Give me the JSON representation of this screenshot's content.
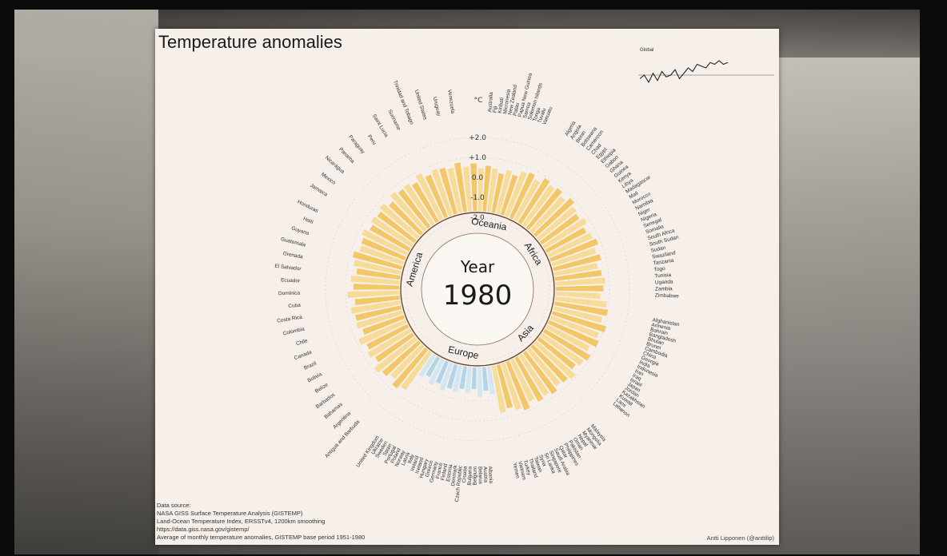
{
  "slide": {
    "title": "Temperature anomalies",
    "source_lines": [
      "Data source:",
      "NASA GISS Surface Temperature Analysis (GISTEMP)",
      "Land-Ocean Temperature Index, ERSSTv4, 1200km smoothing",
      "https://data.giss.nasa.gov/gistemp/",
      "Average of monthly temperature anomalies, GISTEMP base period 1951-1980"
    ],
    "credit": "Antti Lipponen (@anttilip)"
  },
  "colors": {
    "warm": "#f2c25a",
    "warm_light": "#f6d98e",
    "cool": "#a9d3ea",
    "cool_light": "#cfe6f2",
    "ring": "#6b4a2e",
    "slide_bg": "#f6efea"
  },
  "chart_data": {
    "type": "radial-bar",
    "center_label": "Year",
    "center_value": "1980",
    "unit_label": "°C",
    "radial_ticks": [
      "+2.0",
      "+1.0",
      "0.0",
      "-1.0",
      "-2.0"
    ],
    "radial_tick_values": [
      2,
      1,
      0,
      -1,
      -2
    ],
    "continents": [
      {
        "name": "Oceania",
        "start": 0,
        "end": 20
      },
      {
        "name": "Africa",
        "start": 20,
        "end": 95
      },
      {
        "name": "Asia",
        "start": 95,
        "end": 170
      },
      {
        "name": "Europe",
        "start": 170,
        "end": 215
      },
      {
        "name": "America",
        "start": 215,
        "end": 360
      }
    ],
    "series": [
      {
        "continent": "Oceania",
        "start": 0,
        "end": 20,
        "values": [
          0.45,
          0.6,
          0.5,
          0.3,
          0.55,
          0.4
        ]
      },
      {
        "continent": "Africa",
        "start": 20,
        "end": 95,
        "values": [
          0.7,
          0.8,
          0.6,
          0.9,
          0.75,
          0.85,
          0.65,
          0.9,
          0.7,
          0.6,
          0.8,
          0.55,
          0.7,
          0.85,
          0.6,
          0.75,
          0.5,
          0.65,
          0.8,
          0.7,
          0.55
        ]
      },
      {
        "continent": "Asia",
        "start": 95,
        "end": 170,
        "values": [
          0.9,
          1.0,
          0.8,
          1.1,
          0.85,
          1.0,
          0.7,
          0.95,
          0.8,
          0.6,
          0.9,
          0.75,
          0.65,
          0.85,
          0.7,
          0.8,
          0.6,
          0.9,
          0.75,
          0.55,
          0.7
        ]
      },
      {
        "continent": "Europe",
        "start": 170,
        "end": 215,
        "values": [
          -0.3,
          -0.5,
          -0.2,
          -0.6,
          -0.4,
          -0.55,
          -0.35,
          -0.45,
          -0.25,
          -0.5,
          -0.3,
          -0.6,
          -0.4
        ]
      },
      {
        "continent": "America",
        "start": 215,
        "end": 360,
        "values": [
          0.6,
          0.8,
          0.5,
          0.7,
          0.9,
          0.55,
          0.75,
          0.6,
          0.85,
          0.5,
          0.7,
          0.65,
          0.8,
          0.55,
          0.9,
          0.6,
          0.75,
          0.5,
          0.7,
          0.85,
          0.6,
          0.65,
          0.8,
          0.55,
          0.7,
          0.6,
          0.75,
          0.5,
          0.8,
          0.65,
          0.7,
          0.55,
          0.85,
          0.6,
          0.75,
          0.7,
          0.6,
          0.8,
          0.55,
          0.7
        ]
      }
    ],
    "countries": {
      "america_left": [
        "Antigua and Barbuda",
        "Argentina",
        "Bahamas",
        "Barbados",
        "Belize",
        "Bolivia",
        "Brazil",
        "Canada",
        "Chile",
        "Colombia",
        "Costa Rica",
        "Cuba",
        "Dominica",
        "Ecuador",
        "El Salvador",
        "Grenada",
        "Guatemala",
        "Guyana",
        "Haiti",
        "Honduras"
      ],
      "america_top": [
        "Jamaica",
        "Mexico",
        "Nicaragua",
        "Panama",
        "Paraguay",
        "Peru",
        "Saint Lucia",
        "Suriname",
        "Trinidad and Tobago",
        "United States",
        "Uruguay",
        "Venezuela"
      ],
      "oceania_top": [
        "Australia",
        "Fiji",
        "Kiribati",
        "Micronesia",
        "New Zealand",
        "Palau",
        "Papua New Guinea",
        "Samoa",
        "Solomon Islands",
        "Tonga",
        "Tuvalu",
        "Vanuatu"
      ],
      "africa_right": [
        "Algeria",
        "Angola",
        "Benin",
        "Botswana",
        "Cameroon",
        "Chad",
        "Egypt",
        "Ethiopia",
        "Gabon",
        "Ghana",
        "Guinea",
        "Kenya",
        "Libya",
        "Madagascar",
        "Mali",
        "Morocco",
        "Namibia",
        "Niger",
        "Nigeria",
        "Senegal",
        "Somalia",
        "South Africa",
        "South Sudan",
        "Sudan",
        "Swaziland",
        "Tanzania",
        "Togo",
        "Tunisia",
        "Uganda",
        "Zambia",
        "Zimbabwe"
      ],
      "asia_right": [
        "Afghanistan",
        "Armenia",
        "Bahrain",
        "Bangladesh",
        "Bhutan",
        "Brunei",
        "Cambodia",
        "China",
        "Georgia",
        "India",
        "Indonesia",
        "Iran",
        "Iraq",
        "Israel",
        "Japan",
        "Jordan",
        "Kazakhstan",
        "Kuwait",
        "Laos",
        "Lebanon"
      ],
      "asia_bottom": [
        "Malaysia",
        "Mongolia",
        "Myanmar",
        "Nepal",
        "Oman",
        "Pakistan",
        "Philippines",
        "Qatar",
        "Saudi Arabia",
        "Singapore",
        "Sri Lanka",
        "Syria",
        "Taiwan",
        "Thailand",
        "Turkey",
        "Vietnam",
        "Yemen"
      ],
      "europe_left": [
        "Albania",
        "Austria",
        "Belarus",
        "Belgium",
        "Bulgaria",
        "Croatia",
        "Czech Republic",
        "Denmark",
        "Estonia",
        "Finland",
        "France",
        "Germany",
        "Greece",
        "Hungary",
        "Iceland",
        "Ireland",
        "Italy",
        "Latvia",
        "Norway",
        "Poland",
        "Portugal",
        "Spain",
        "Sweden",
        "Ukraine",
        "United Kingdom"
      ]
    },
    "inset": {
      "label": "Global",
      "values": [
        -0.1,
        0.0,
        -0.2,
        0.05,
        -0.15,
        0.1,
        -0.05,
        0.0,
        0.15,
        -0.1,
        0.05,
        0.2,
        0.1,
        0.3,
        0.25,
        0.2,
        0.35,
        0.3,
        0.4,
        0.3,
        0.35
      ]
    }
  }
}
